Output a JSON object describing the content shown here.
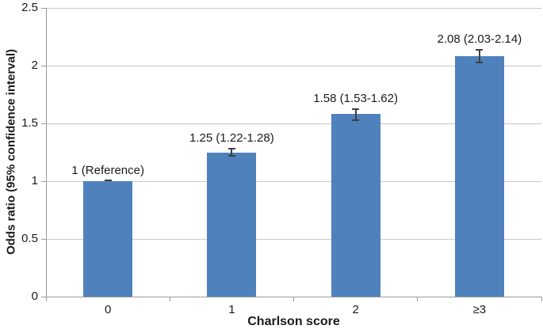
{
  "chart_data": {
    "type": "bar",
    "title": "",
    "xlabel": "Charlson score",
    "ylabel": "Odds ratio (95% confidence interval)",
    "categories": [
      "0",
      "1",
      "2",
      "≥3"
    ],
    "values": [
      1.0,
      1.25,
      1.58,
      2.08
    ],
    "ci_low": [
      1.0,
      1.22,
      1.53,
      2.03
    ],
    "ci_high": [
      1.0,
      1.28,
      1.62,
      2.14
    ],
    "bar_labels": [
      "1 (Reference)",
      "1.25 (1.22-1.28)",
      "1.58 (1.53-1.62)",
      "2.08 (2.03-2.14)"
    ],
    "ylim": [
      0,
      2.5
    ],
    "yticks": [
      0,
      0.5,
      1,
      1.5,
      2,
      2.5
    ],
    "ytick_labels": [
      "0",
      "0.5",
      "1",
      "1.5",
      "2",
      "2.5"
    ],
    "grid": true,
    "legend": "none",
    "colors": {
      "bar": "#4f81bd",
      "error_bar": "#3f3f3f",
      "gridline": "#c8c8c8",
      "axis_line": "#9a9a9a",
      "text": "#1a1a1a"
    }
  }
}
